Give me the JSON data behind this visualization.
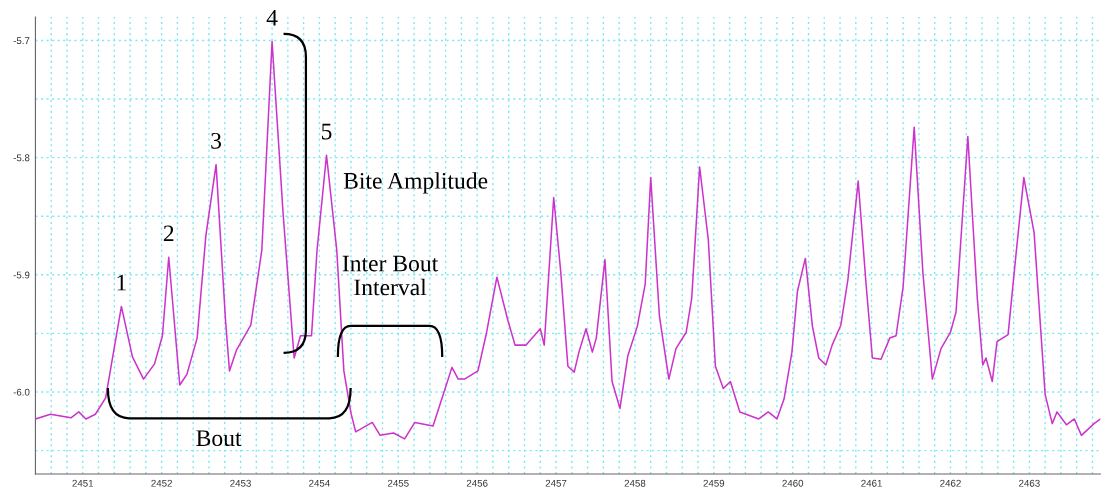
{
  "chart_data": {
    "type": "line",
    "x": [
      2450.4,
      2450.59,
      2450.85,
      2450.95,
      2451.04,
      2451.16,
      2451.29,
      2451.49,
      2451.63,
      2451.77,
      2451.91,
      2452.01,
      2452.09,
      2452.23,
      2452.32,
      2452.45,
      2452.56,
      2452.69,
      2452.81,
      2452.86,
      2452.95,
      2453.13,
      2453.27,
      2453.4,
      2453.54,
      2453.68,
      2453.76,
      2453.9,
      2453.97,
      2454.09,
      2454.22,
      2454.31,
      2454.4,
      2454.46,
      2454.67,
      2454.77,
      2454.94,
      2455.08,
      2455.21,
      2455.44,
      2455.58,
      2455.68,
      2455.76,
      2455.84,
      2456.01,
      2456.12,
      2456.25,
      2456.39,
      2456.48,
      2456.62,
      2456.8,
      2456.85,
      2456.97,
      2457.06,
      2457.15,
      2457.23,
      2457.29,
      2457.38,
      2457.46,
      2457.51,
      2457.62,
      2457.71,
      2457.81,
      2457.91,
      2458.03,
      2458.13,
      2458.2,
      2458.31,
      2458.43,
      2458.52,
      2458.65,
      2458.72,
      2458.82,
      2458.93,
      2459.02,
      2459.12,
      2459.21,
      2459.33,
      2459.57,
      2459.69,
      2459.8,
      2459.89,
      2459.99,
      2460.06,
      2460.16,
      2460.25,
      2460.33,
      2460.42,
      2460.5,
      2460.61,
      2460.7,
      2460.83,
      2460.93,
      2461.01,
      2461.12,
      2461.23,
      2461.31,
      2461.4,
      2461.54,
      2461.65,
      2461.77,
      2461.88,
      2462.0,
      2462.07,
      2462.22,
      2462.34,
      2462.41,
      2462.45,
      2462.53,
      2462.59,
      2462.73,
      2462.83,
      2462.93,
      2463.06,
      2463.2,
      2463.29,
      2463.35,
      2463.47,
      2463.57,
      2463.66,
      2463.82,
      2463.9
    ],
    "series": [
      {
        "color": "#cc33cc",
        "values": [
          -6.023,
          -6.019,
          -6.022,
          -6.017,
          -6.023,
          -6.019,
          -6.005,
          -5.927,
          -5.97,
          -5.989,
          -5.976,
          -5.952,
          -5.885,
          -5.994,
          -5.985,
          -5.954,
          -5.867,
          -5.806,
          -5.939,
          -5.982,
          -5.964,
          -5.943,
          -5.879,
          -5.701,
          -5.848,
          -5.971,
          -5.952,
          -5.952,
          -5.879,
          -5.798,
          -5.879,
          -5.982,
          -6.018,
          -6.034,
          -6.026,
          -6.037,
          -6.035,
          -6.04,
          -6.026,
          -6.029,
          -6.0,
          -5.979,
          -5.989,
          -5.989,
          -5.982,
          -5.949,
          -5.902,
          -5.939,
          -5.96,
          -5.96,
          -5.946,
          -5.96,
          -5.834,
          -5.898,
          -5.978,
          -5.983,
          -5.966,
          -5.946,
          -5.966,
          -5.954,
          -5.887,
          -5.991,
          -6.014,
          -5.969,
          -5.944,
          -5.908,
          -5.817,
          -5.935,
          -5.989,
          -5.963,
          -5.949,
          -5.92,
          -5.808,
          -5.87,
          -5.978,
          -5.997,
          -5.991,
          -6.017,
          -6.023,
          -6.017,
          -6.023,
          -6.006,
          -5.966,
          -5.914,
          -5.886,
          -5.944,
          -5.971,
          -5.977,
          -5.96,
          -5.943,
          -5.904,
          -5.82,
          -5.908,
          -5.971,
          -5.972,
          -5.954,
          -5.952,
          -5.91,
          -5.774,
          -5.898,
          -5.989,
          -5.963,
          -5.949,
          -5.932,
          -5.782,
          -5.92,
          -5.977,
          -5.971,
          -5.991,
          -5.957,
          -5.951,
          -5.883,
          -5.817,
          -5.864,
          -6.002,
          -6.027,
          -6.017,
          -6.028,
          -6.023,
          -6.037,
          -6.027,
          -6.023
        ]
      }
    ],
    "xlim": [
      2450.4,
      2463.9
    ],
    "ylim": [
      -6.07,
      -5.68
    ],
    "xticks": [
      {
        "value": 2450.4,
        "label": null
      },
      {
        "value": 2450.6,
        "label": null
      },
      {
        "value": 2450.8,
        "label": null
      },
      2451,
      {
        "value": 2451.2,
        "label": null
      },
      {
        "value": 2451.4,
        "label": null
      },
      {
        "value": 2451.6,
        "label": null
      },
      {
        "value": 2451.8,
        "label": null
      },
      2452,
      {
        "value": 2452.2,
        "label": null
      },
      {
        "value": 2452.4,
        "label": null
      },
      {
        "value": 2452.6,
        "label": null
      },
      {
        "value": 2452.8,
        "label": null
      },
      2453,
      {
        "value": 2453.2,
        "label": null
      },
      {
        "value": 2453.4,
        "label": null
      },
      {
        "value": 2453.6,
        "label": null
      },
      {
        "value": 2453.8,
        "label": null
      },
      2454,
      {
        "value": 2454.2,
        "label": null
      },
      {
        "value": 2454.4,
        "label": null
      },
      {
        "value": 2454.6,
        "label": null
      },
      {
        "value": 2454.8,
        "label": null
      },
      2455,
      {
        "value": 2455.2,
        "label": null
      },
      {
        "value": 2455.4,
        "label": null
      },
      {
        "value": 2455.6,
        "label": null
      },
      {
        "value": 2455.8,
        "label": null
      },
      2456,
      {
        "value": 2456.2,
        "label": null
      },
      {
        "value": 2456.4,
        "label": null
      },
      {
        "value": 2456.6,
        "label": null
      },
      {
        "value": 2456.8,
        "label": null
      },
      2457,
      {
        "value": 2457.2,
        "label": null
      },
      {
        "value": 2457.4,
        "label": null
      },
      {
        "value": 2457.6,
        "label": null
      },
      {
        "value": 2457.8,
        "label": null
      },
      2458,
      {
        "value": 2458.2,
        "label": null
      },
      {
        "value": 2458.4,
        "label": null
      },
      {
        "value": 2458.6,
        "label": null
      },
      {
        "value": 2458.8,
        "label": null
      },
      2459,
      {
        "value": 2459.2,
        "label": null
      },
      {
        "value": 2459.4,
        "label": null
      },
      {
        "value": 2459.6,
        "label": null
      },
      {
        "value": 2459.8,
        "label": null
      },
      2460,
      {
        "value": 2460.2,
        "label": null
      },
      {
        "value": 2460.4,
        "label": null
      },
      {
        "value": 2460.6,
        "label": null
      },
      {
        "value": 2460.8,
        "label": null
      },
      2461,
      {
        "value": 2461.2,
        "label": null
      },
      {
        "value": 2461.4,
        "label": null
      },
      {
        "value": 2461.6,
        "label": null
      },
      {
        "value": 2461.8,
        "label": null
      },
      2462,
      {
        "value": 2462.2,
        "label": null
      },
      {
        "value": 2462.4,
        "label": null
      },
      {
        "value": 2462.6,
        "label": null
      },
      {
        "value": 2462.8,
        "label": null
      },
      2463,
      {
        "value": 2463.2,
        "label": null
      },
      {
        "value": 2463.4,
        "label": null
      },
      {
        "value": 2463.6,
        "label": null
      },
      {
        "value": 2463.8,
        "label": null
      }
    ],
    "yticks": [
      {
        "value": -5.7,
        "label": "-5.7"
      },
      {
        "value": -5.75,
        "label": null
      },
      {
        "value": -5.8,
        "label": "-5.8"
      },
      {
        "value": -5.85,
        "label": null
      },
      {
        "value": -5.9,
        "label": "-5.9"
      },
      {
        "value": -5.95,
        "label": null
      },
      {
        "value": -6.0,
        "label": "-6.0"
      },
      {
        "value": -6.05,
        "label": null
      }
    ],
    "grid": true,
    "line_style": "solid",
    "marker": "none",
    "annotations": [
      {
        "text": "1",
        "x": 2451.49,
        "y": -5.927
      },
      {
        "text": "2",
        "x": 2452.09,
        "y": -5.885
      },
      {
        "text": "3",
        "x": 2452.69,
        "y": -5.806
      },
      {
        "text": "4",
        "x": 2453.4,
        "y": -5.701
      },
      {
        "text": "5",
        "x": 2454.09,
        "y": -5.798
      },
      "Bite Amplitude",
      "Inter Bout\nInterval",
      "Bout"
    ]
  }
}
